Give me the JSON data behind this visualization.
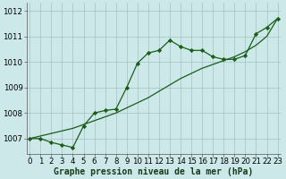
{
  "title": "Graphe pression niveau de la mer (hPa)",
  "bg_color": "#cce8e8",
  "grid_color": "#aac8c8",
  "line_color": "#1a5c1a",
  "marker_color": "#1a5c1a",
  "x_values": [
    0,
    1,
    2,
    3,
    4,
    5,
    6,
    7,
    8,
    9,
    10,
    11,
    12,
    13,
    14,
    15,
    16,
    17,
    18,
    19,
    20,
    21,
    22,
    23
  ],
  "y_main": [
    1007.0,
    1007.0,
    1006.85,
    1006.75,
    1006.65,
    1007.5,
    1008.0,
    1008.1,
    1008.15,
    1009.0,
    1009.95,
    1010.35,
    1010.45,
    1010.85,
    1010.6,
    1010.45,
    1010.45,
    1010.2,
    1010.1,
    1010.1,
    1010.25,
    1011.1,
    1011.35,
    1011.7
  ],
  "y_trend": [
    1007.0,
    1007.1,
    1007.2,
    1007.3,
    1007.4,
    1007.55,
    1007.7,
    1007.85,
    1008.0,
    1008.2,
    1008.4,
    1008.6,
    1008.85,
    1009.1,
    1009.35,
    1009.55,
    1009.75,
    1009.9,
    1010.05,
    1010.2,
    1010.4,
    1010.65,
    1011.0,
    1011.7
  ],
  "ylim_min": 1006.4,
  "ylim_max": 1012.3,
  "yticks": [
    1007,
    1008,
    1009,
    1010,
    1011,
    1012
  ],
  "xlim_min": -0.3,
  "xlim_max": 23.3,
  "xlabel_fontsize": 7.0,
  "tick_fontsize": 6.2,
  "figwidth": 3.2,
  "figheight": 2.0,
  "dpi": 100
}
